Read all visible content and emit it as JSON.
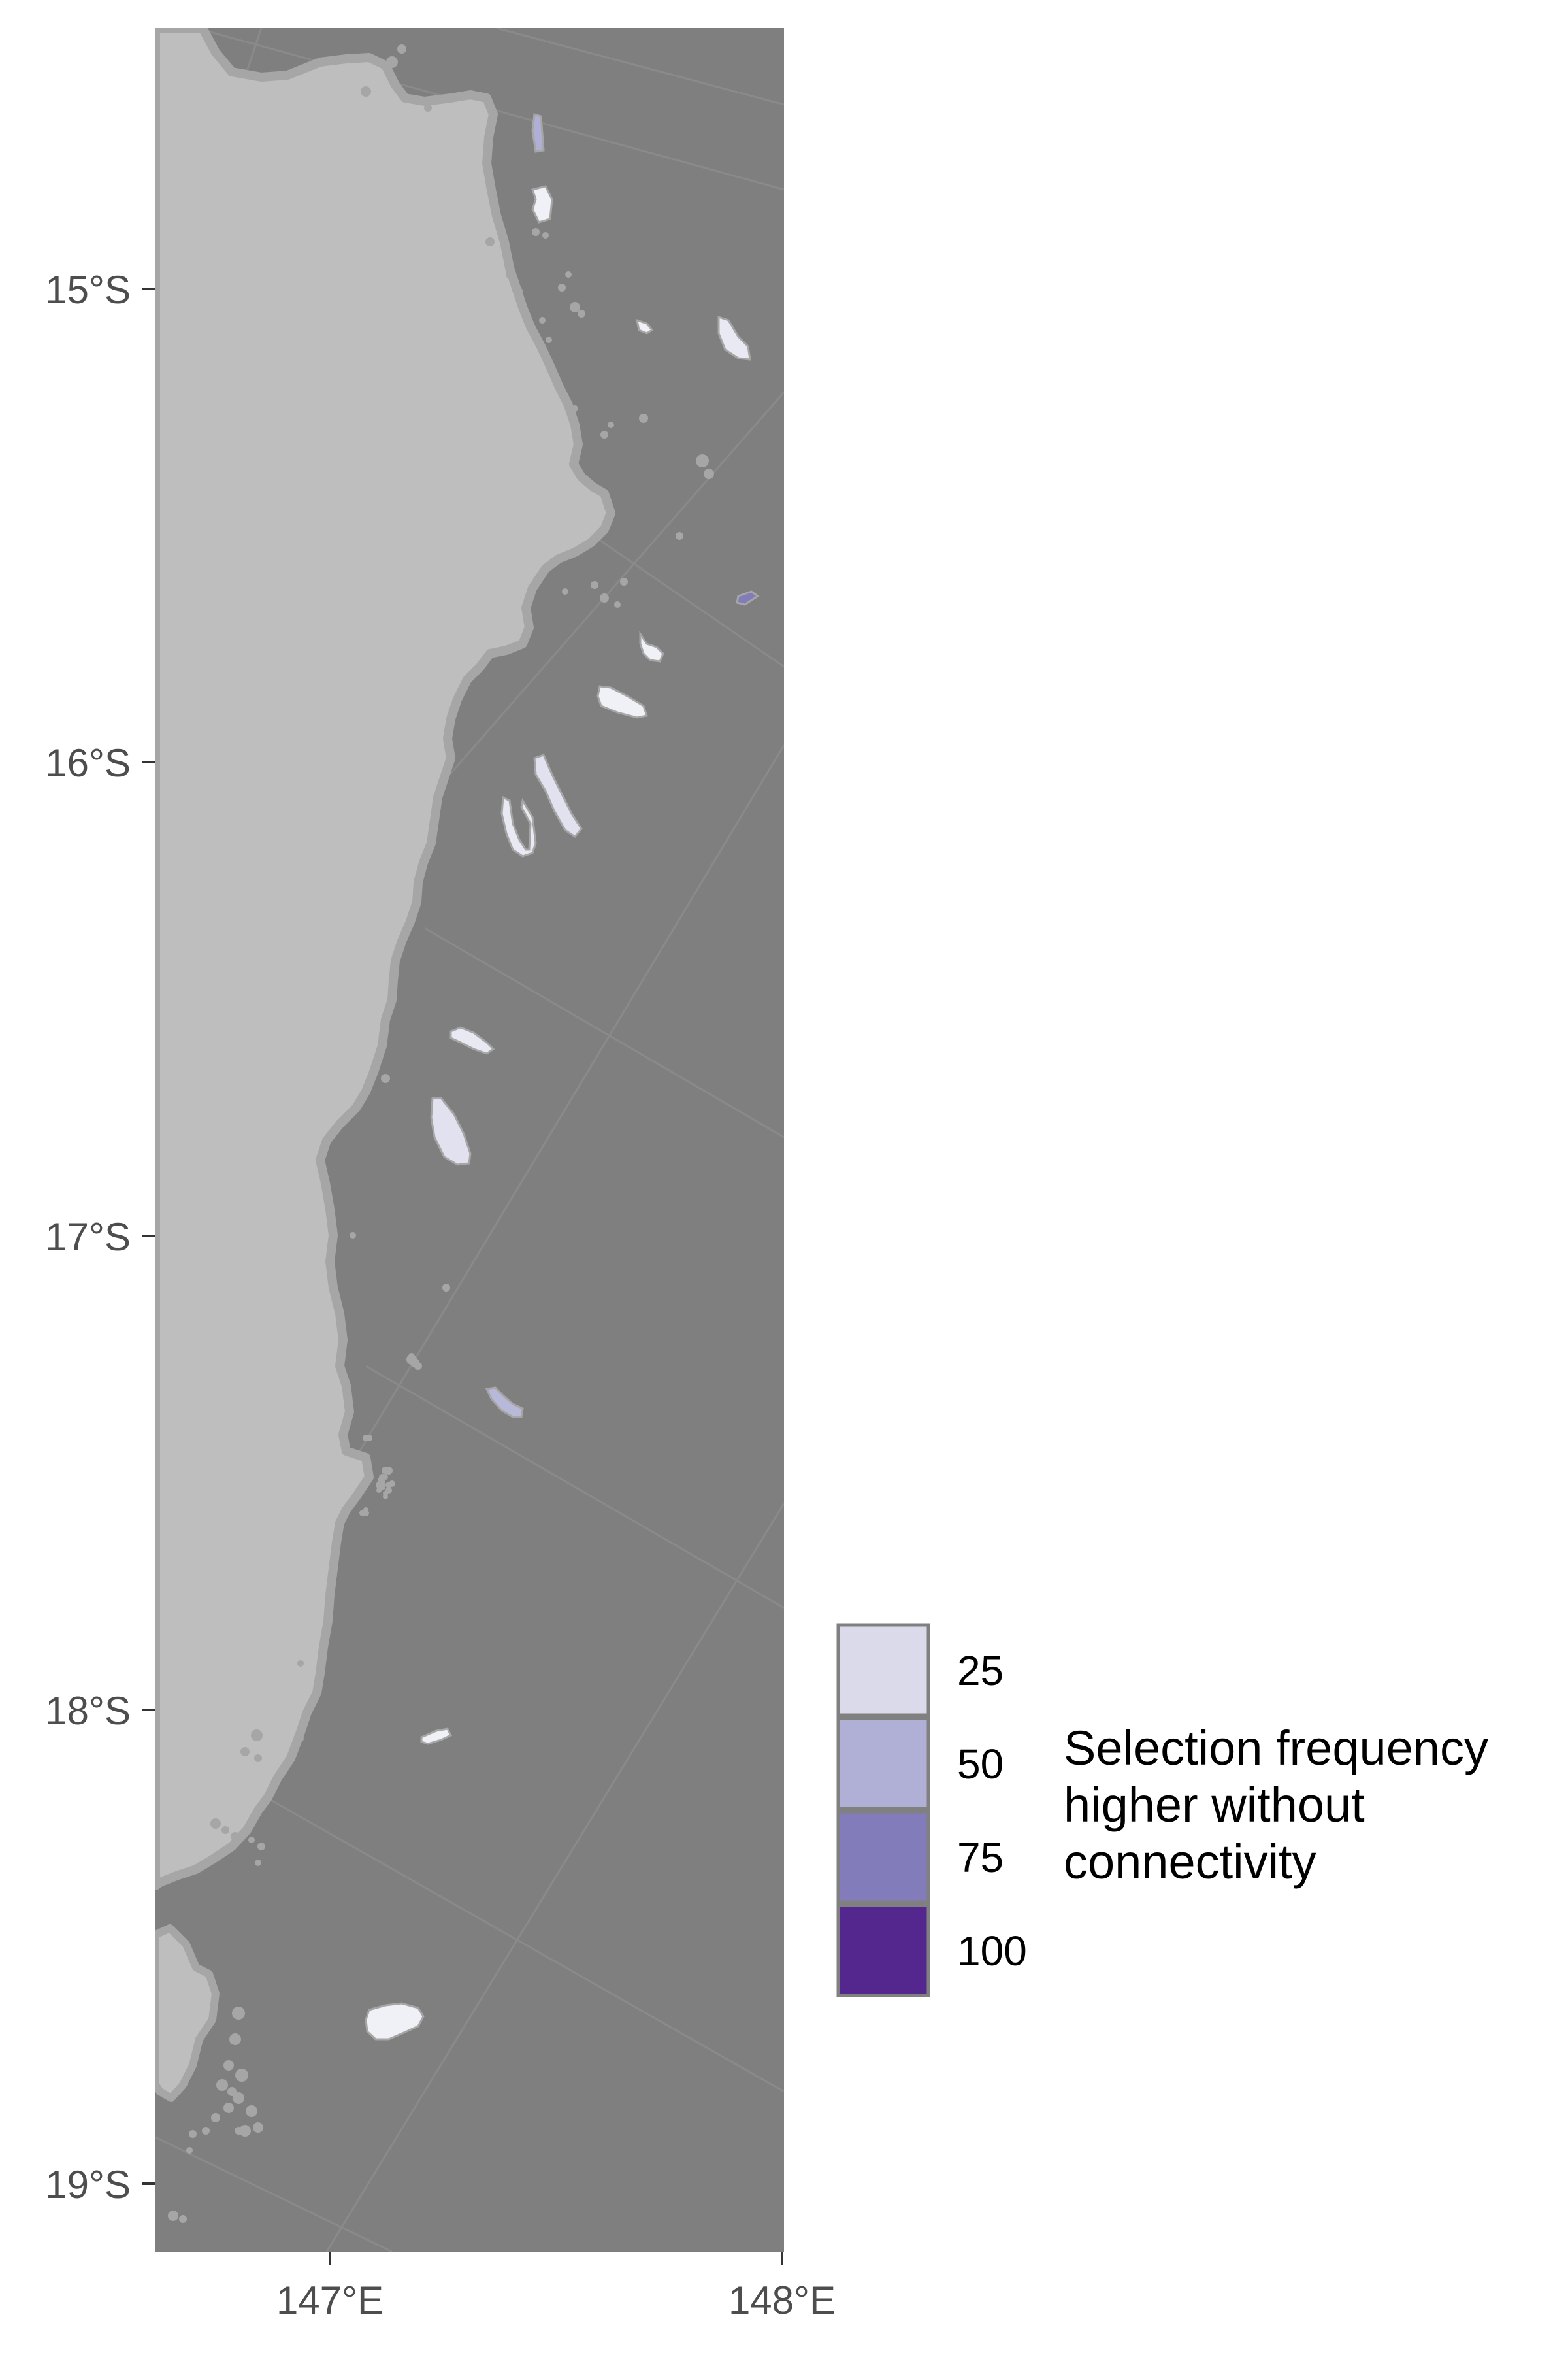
{
  "map": {
    "ocean_color": "#7f7f7f",
    "land_color": "#bebebe",
    "shallow_color": "#a6a6a6",
    "graticule_color": "#8a8a8a",
    "axis_tick_color": "#333333",
    "lat_ticks": [
      "15°S",
      "16°S",
      "17°S",
      "18°S",
      "19°S"
    ],
    "lon_ticks": [
      "147°E",
      "148°E"
    ],
    "reefs": [
      {
        "id": "r1",
        "value": 50
      },
      {
        "id": "r2",
        "value": 10
      },
      {
        "id": "r3",
        "value": 15
      },
      {
        "id": "r4",
        "value": 10
      },
      {
        "id": "r5",
        "value": 75
      },
      {
        "id": "r6",
        "value": 10
      },
      {
        "id": "r7",
        "value": 20
      },
      {
        "id": "r8",
        "value": 15
      },
      {
        "id": "r9",
        "value": 15
      },
      {
        "id": "r10",
        "value": 20
      },
      {
        "id": "r11",
        "value": 45
      },
      {
        "id": "r12",
        "value": 10
      },
      {
        "id": "r13",
        "value": 10
      },
      {
        "id": "r14",
        "value": 10
      }
    ]
  },
  "legend": {
    "title_lines": [
      "Selection frequency",
      "higher without",
      "connectivity"
    ],
    "items": [
      {
        "label": "25",
        "color": "#dadaeb"
      },
      {
        "label": "50",
        "color": "#b0afd5"
      },
      {
        "label": "75",
        "color": "#827cba"
      },
      {
        "label": "100",
        "color": "#54278f"
      }
    ]
  }
}
